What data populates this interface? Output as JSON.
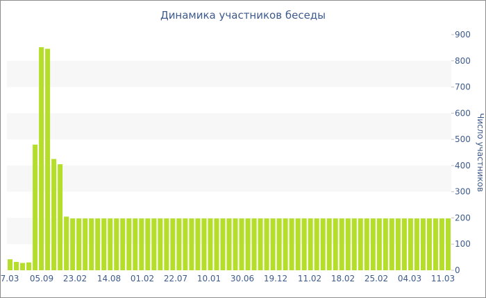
{
  "chart_data": {
    "type": "bar",
    "title": "Динамика участников беседы",
    "xlabel": "",
    "ylabel": "Число участников",
    "ylim": [
      0,
      900
    ],
    "yticks": [
      0,
      100,
      200,
      300,
      400,
      500,
      600,
      700,
      800,
      900
    ],
    "y_axis_side": "right",
    "grid": "alternating horizontal bands",
    "bar_color": "#b5de2b",
    "band_color": "#f7f7f7",
    "text_color": "#3d5a8c",
    "x_tick_labels": [
      "7.03",
      "05.09",
      "23.02",
      "14.08",
      "01.02",
      "22.07",
      "10.01",
      "30.06",
      "19.12",
      "11.02",
      "18.02",
      "25.02",
      "04.03",
      "11.03"
    ],
    "values": [
      42,
      32,
      28,
      30,
      480,
      852,
      846,
      425,
      405,
      205,
      198,
      198,
      198,
      198,
      198,
      198,
      198,
      198,
      198,
      198,
      198,
      198,
      198,
      198,
      198,
      198,
      198,
      198,
      198,
      198,
      198,
      198,
      198,
      198,
      198,
      198,
      198,
      198,
      198,
      198,
      198,
      198,
      198,
      198,
      198,
      198,
      198,
      198,
      198,
      198,
      198,
      198,
      198,
      198,
      198,
      198,
      198,
      198,
      198,
      198,
      198,
      198,
      198,
      198,
      198,
      198,
      198,
      198,
      198,
      198,
      198
    ]
  }
}
